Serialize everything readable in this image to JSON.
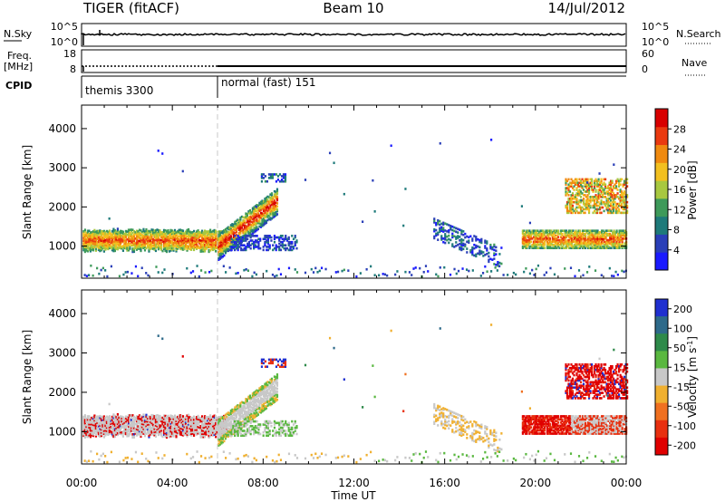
{
  "header": {
    "station": "TIGER (fitACF)",
    "beam": "Beam 10",
    "date": "14/Jul/2012"
  },
  "panels": {
    "nsky": {
      "left_label": "N.Sky",
      "ticks": [
        "10^5",
        "10^0"
      ],
      "right_label": "N.Search",
      "right_ticks": [
        "10^5",
        "10^0"
      ]
    },
    "freq": {
      "left_label1": "Freq.",
      "left_label2": "[MHz]",
      "ticks": [
        "18",
        "8"
      ],
      "right_label": "Nave",
      "right_ticks": [
        "60",
        "0"
      ]
    },
    "cpid": {
      "label": "CPID",
      "segments": [
        {
          "name": "themis 3300",
          "start_hour": 0,
          "end_hour": 6
        },
        {
          "name": "normal (fast) 151",
          "start_hour": 6,
          "end_hour": 24
        }
      ]
    }
  },
  "x_axis": {
    "label": "Time UT",
    "ticks": [
      "00:00",
      "04:00",
      "08:00",
      "12:00",
      "16:00",
      "20:00",
      "00:00"
    ]
  },
  "chart_data": [
    {
      "type": "heatmap",
      "quantity": "Power",
      "ylabel": "Slant Range [km]",
      "yticks": [
        "1000",
        "2000",
        "3000",
        "4000"
      ],
      "ylim": [
        180,
        4600
      ],
      "xlim": [
        0,
        24
      ],
      "colorbar": {
        "label": "Power [dB]",
        "ticks": [
          "4",
          "8",
          "12",
          "16",
          "20",
          "24",
          "28"
        ],
        "range": [
          0,
          30
        ],
        "colors": [
          "#1a1aff",
          "#2a3fb8",
          "#1e7a7a",
          "#3e9a5a",
          "#a8c840",
          "#f2c020",
          "#f08a10",
          "#ea3a10",
          "#d80000"
        ]
      }
    },
    {
      "type": "heatmap",
      "quantity": "Velocity",
      "ylabel": "Slant Range [km]",
      "yticks": [
        "1000",
        "2000",
        "3000",
        "4000"
      ],
      "ylim": [
        180,
        4600
      ],
      "xlim": [
        0,
        24
      ],
      "colorbar": {
        "label": "Velocity [m s^-1]",
        "ticks": [
          "200",
          "100",
          "50",
          "15",
          "-15",
          "-50",
          "-100",
          "-200"
        ],
        "range": [
          -250,
          250
        ],
        "colors": [
          "#2030d0",
          "#2e6a8a",
          "#2e8a4a",
          "#5ab840",
          "#c8c8c8",
          "#f0b030",
          "#f07020",
          "#e83010",
          "#e00000"
        ]
      }
    }
  ],
  "colors": {
    "frame": "#000000",
    "boundary_line": "#c8c8c8"
  }
}
